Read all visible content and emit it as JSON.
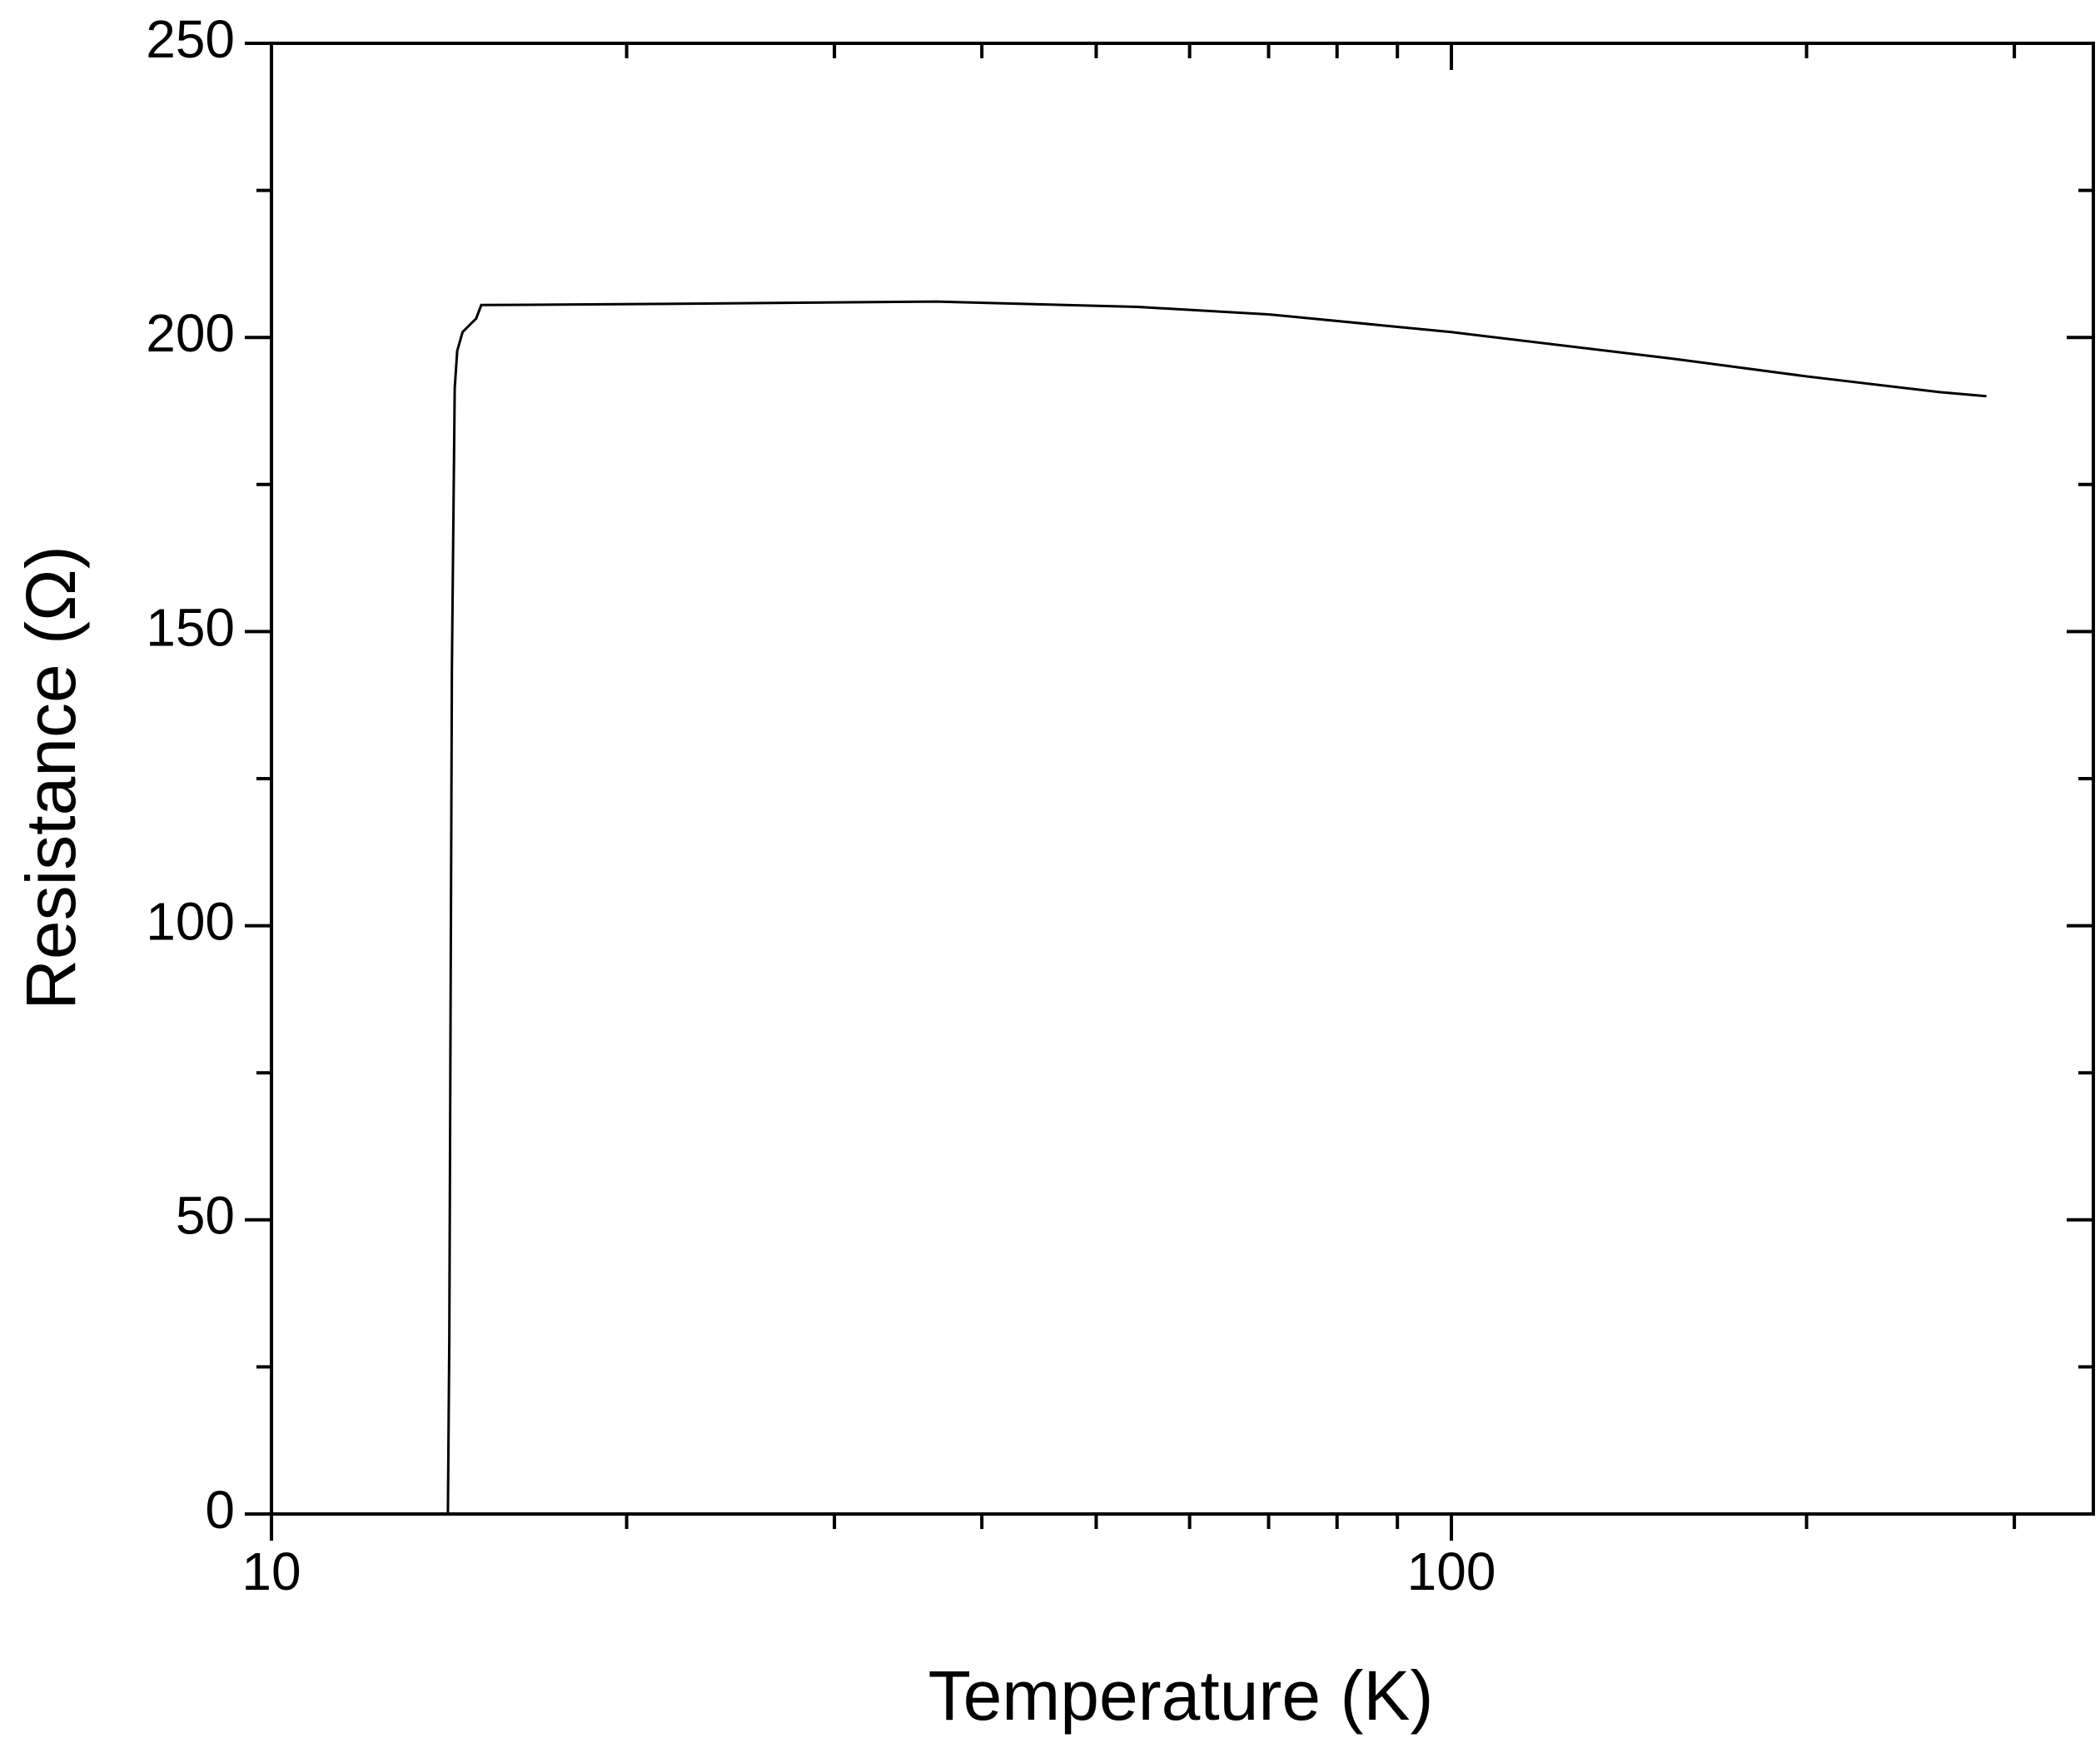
{
  "chart_data": {
    "type": "line",
    "xlabel": "Temperature (K)",
    "ylabel": "Resistance (Ω)",
    "xscale": "log",
    "color": "#000000",
    "x": [
      14.11,
      14.15,
      14.22,
      14.3,
      14.37,
      14.52,
      14.75,
      14.91,
      15.06,
      21.7,
      36.6,
      54.2,
      70.3,
      100,
      153.8,
      199.6,
      259.4,
      284.1
    ],
    "values": [
      0,
      29.8,
      143.6,
      191.4,
      197.7,
      200.9,
      202.3,
      203.2,
      205.5,
      205.7,
      206.1,
      205.2,
      203.9,
      200.9,
      196.4,
      193.4,
      190.7,
      190.0
    ],
    "xlim": [
      10,
      350
    ],
    "ylim": [
      0,
      250
    ],
    "xticks": [
      10,
      100
    ],
    "xminorticks": [
      20,
      30,
      40,
      50,
      60,
      70,
      80,
      90,
      200,
      300
    ],
    "yticks": [
      0,
      50,
      100,
      150,
      200,
      250
    ],
    "yminorticks": [
      25,
      75,
      125,
      175,
      225
    ]
  }
}
